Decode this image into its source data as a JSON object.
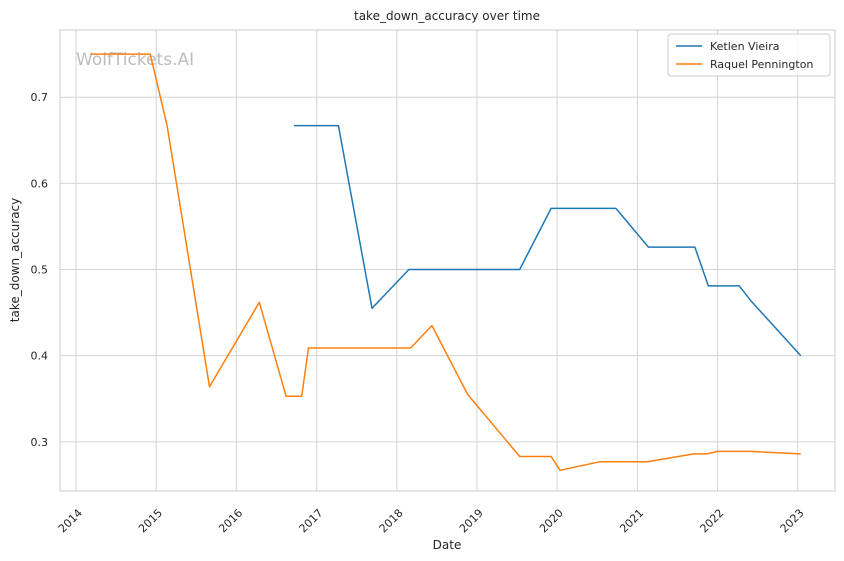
{
  "chart_data": {
    "type": "line",
    "title": "take_down_accuracy over time",
    "xlabel": "Date",
    "ylabel": "take_down_accuracy",
    "watermark": "WolfTickets.AI",
    "x_ticks": [
      "2014",
      "2015",
      "2016",
      "2017",
      "2018",
      "2019",
      "2020",
      "2021",
      "2022",
      "2023"
    ],
    "y_ticks": [
      "0.3",
      "0.4",
      "0.5",
      "0.6",
      "0.7"
    ],
    "xlim": [
      "2013-10-20",
      "2023-06-20"
    ],
    "ylim": [
      0.243,
      0.778
    ],
    "grid": true,
    "legend_position": "top-right",
    "series": [
      {
        "name": "Ketlen Vieira",
        "color": "#1f77b4",
        "points": [
          [
            "2016-09-20",
            0.667
          ],
          [
            "2017-04-10",
            0.667
          ],
          [
            "2017-09-10",
            0.455
          ],
          [
            "2018-02-25",
            0.5
          ],
          [
            "2019-07-15",
            0.5
          ],
          [
            "2019-12-05",
            0.571
          ],
          [
            "2020-09-25",
            0.571
          ],
          [
            "2021-02-20",
            0.526
          ],
          [
            "2021-09-20",
            0.526
          ],
          [
            "2021-11-20",
            0.481
          ],
          [
            "2022-04-10",
            0.481
          ],
          [
            "2022-06-01",
            0.464
          ],
          [
            "2023-01-15",
            0.4
          ]
        ]
      },
      {
        "name": "Raquel Pennington",
        "color": "#ff7f0e",
        "points": [
          [
            "2014-03-10",
            0.75
          ],
          [
            "2014-12-05",
            0.75
          ],
          [
            "2015-02-20",
            0.667
          ],
          [
            "2015-09-01",
            0.364
          ],
          [
            "2016-04-15",
            0.462
          ],
          [
            "2016-08-15",
            0.353
          ],
          [
            "2016-10-25",
            0.353
          ],
          [
            "2016-11-25",
            0.409
          ],
          [
            "2018-03-05",
            0.409
          ],
          [
            "2018-06-10",
            0.435
          ],
          [
            "2018-11-20",
            0.355
          ],
          [
            "2019-07-15",
            0.283
          ],
          [
            "2019-12-05",
            0.283
          ],
          [
            "2020-01-15",
            0.267
          ],
          [
            "2020-07-15",
            0.277
          ],
          [
            "2021-02-15",
            0.277
          ],
          [
            "2021-09-15",
            0.286
          ],
          [
            "2021-11-15",
            0.286
          ],
          [
            "2022-01-01",
            0.289
          ],
          [
            "2022-06-01",
            0.289
          ],
          [
            "2023-01-15",
            0.286
          ]
        ]
      }
    ]
  }
}
